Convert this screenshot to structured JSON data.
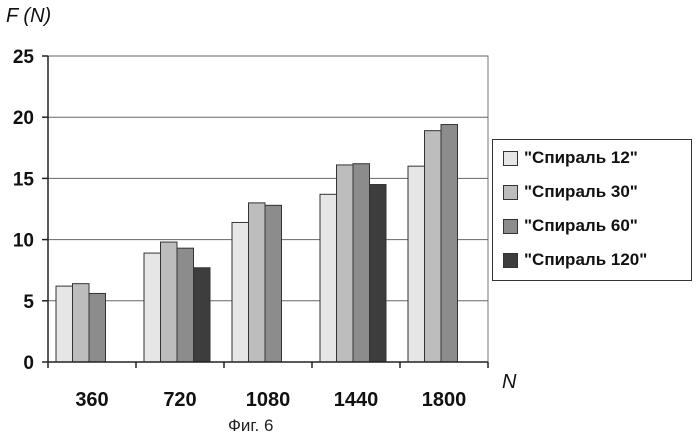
{
  "chart_data": {
    "type": "bar",
    "ylabel": "F (N)",
    "xlabel": "N",
    "categories": [
      "360",
      "720",
      "1080",
      "1440",
      "1800"
    ],
    "ylim": [
      0,
      25
    ],
    "yticks": [
      "0",
      "5",
      "10",
      "15",
      "20",
      "25"
    ],
    "grid": true,
    "legend_position": "right",
    "series": [
      {
        "name": "\"Спираль 12\"",
        "color": "#e6e6e6",
        "values": [
          6.2,
          8.9,
          11.4,
          13.7,
          16.0
        ]
      },
      {
        "name": "\"Спираль 30\"",
        "color": "#bdbdbd",
        "values": [
          6.4,
          9.8,
          13.0,
          16.1,
          18.9
        ]
      },
      {
        "name": "\"Спираль 60\"",
        "color": "#8c8c8c",
        "values": [
          5.6,
          9.3,
          12.8,
          16.2,
          19.4
        ]
      },
      {
        "name": "\"Спираль 120\"",
        "color": "#3d3d3d",
        "values": [
          null,
          7.7,
          null,
          14.5,
          null
        ]
      }
    ]
  },
  "caption": "Фиг. 6"
}
